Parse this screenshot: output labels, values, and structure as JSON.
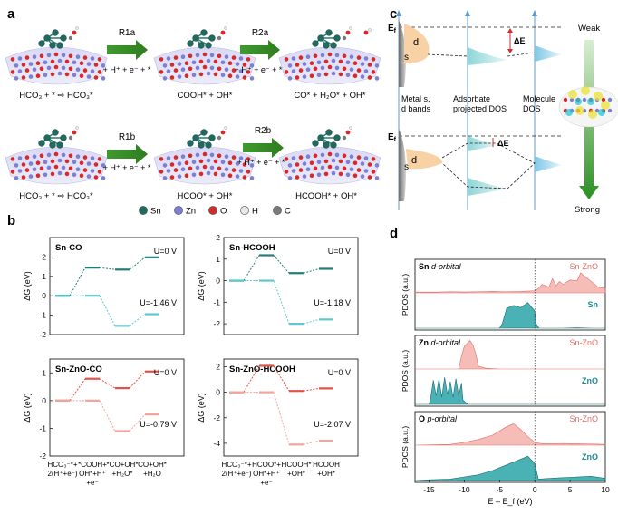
{
  "panels": {
    "a": "a",
    "b": "b",
    "c": "c",
    "d": "d"
  },
  "panel_a": {
    "arrows": [
      "R1a",
      "R2a",
      "R1b",
      "R2b"
    ],
    "arrow_sub": [
      "+ H⁺ + e⁻ + *",
      "+ H⁺ + e⁻ + *",
      "+ H⁺ + e⁻ + *",
      "+ H⁺ + e⁻ + *"
    ],
    "captions_top": [
      "HCO₃ + * ⇨ HCO₃*",
      "COOH* + OH*",
      "CO* + H₂O* + OH*"
    ],
    "captions_bottom": [
      "HCO₃ + * ⇨ HCO₃*",
      "HCOO* + OH*",
      "HCOOH* + OH*"
    ],
    "legend": [
      "Sn",
      "Zn",
      "O",
      "H",
      "C"
    ],
    "legend_colors": [
      "#1f6b60",
      "#7d7fd6",
      "#d42a2a",
      "#e8e8e8",
      "#7a7a7a"
    ]
  },
  "panel_b": {
    "y_label": "ΔG (eV)",
    "x_labels": [
      "HCO₃⁻*+|2(H⁺+e⁻)",
      "*COOH+|OH*+H⁺|+e⁻",
      "*CO+OH*|+H₂O*",
      "CO+OH*|+H₂O"
    ],
    "x_labels_hcooh": [
      "HCO₃⁻*+|2(H⁺+e⁻)",
      "HCOO*+|OH*+H⁺|+e⁻",
      "HCOOH*|+OH*",
      "HCOOH|+OH*"
    ]
  },
  "panel_c": {
    "ef": "E_f",
    "weak": "Weak",
    "strong": "Strong",
    "de": "ΔE",
    "d": "d",
    "s": "s",
    "col_labels": [
      "Metal s,|d bands",
      "Adsorbate|projected DOS",
      "Molecule|DOS"
    ]
  },
  "panel_d": {
    "y_label": "PDOS (a.u.)",
    "x_label": "E – E_f (eV)",
    "x_ticks": [
      "-15",
      "-10",
      "-5",
      "0",
      "5",
      "10"
    ],
    "subplots": [
      {
        "title_bold": "Sn",
        "title_rest": " d-orbital",
        "legend_top": "Sn-ZnO",
        "legend_bottom": "Sn"
      },
      {
        "title_bold": "Zn",
        "title_rest": " d-orbital",
        "legend_top": "Sn-ZnO",
        "legend_bottom": "ZnO"
      },
      {
        "title_bold": "O",
        "title_rest": " p-orbital",
        "legend_top": "Sn-ZnO",
        "legend_bottom": "ZnO"
      }
    ],
    "colors": {
      "top": "#f2a6a0",
      "bottom": "#2aa3a8"
    }
  },
  "chart_data": [
    {
      "type": "line",
      "title": "Sn-CO",
      "ylim": [
        -2,
        3
      ],
      "yticks": [
        -2,
        -1,
        0,
        1,
        2
      ],
      "color": "#1f7f76",
      "color2": "#5cc8d0",
      "series": [
        {
          "name": "U=0 V",
          "values": [
            0,
            1.45,
            1.35,
            1.98
          ]
        },
        {
          "name": "U=-1.46 V",
          "values": [
            0,
            0,
            -1.55,
            -0.95
          ]
        }
      ]
    },
    {
      "type": "line",
      "title": "Sn-HCOOH",
      "ylim": [
        -2.5,
        2
      ],
      "yticks": [
        -2,
        -1,
        0,
        1,
        2
      ],
      "color": "#1f7f76",
      "color2": "#5cc8d0",
      "series": [
        {
          "name": "U=0 V",
          "values": [
            0,
            1.18,
            0.35,
            0.55
          ]
        },
        {
          "name": "U=-1.18 V",
          "values": [
            0,
            0,
            -2.0,
            -1.8
          ]
        }
      ]
    },
    {
      "type": "line",
      "title": "Sn-ZnO-CO",
      "ylim": [
        -2,
        1.5
      ],
      "yticks": [
        -2,
        -1,
        0,
        1
      ],
      "color": "#e0524a",
      "color2": "#f4a39d",
      "series": [
        {
          "name": "U=0 V",
          "values": [
            0,
            0.79,
            0.45,
            1.05
          ]
        },
        {
          "name": "U=-0.79 V",
          "values": [
            0,
            0,
            -1.1,
            -0.5
          ]
        }
      ]
    },
    {
      "type": "line",
      "title": "Sn-ZnO-HCOOH",
      "ylim": [
        -5,
        2.6
      ],
      "yticks": [
        -4,
        -2,
        0,
        2
      ],
      "color": "#e0524a",
      "color2": "#f4a39d",
      "series": [
        {
          "name": "U=0 V",
          "values": [
            0,
            2.07,
            0.1,
            0.3
          ]
        },
        {
          "name": "U=-2.07 V",
          "values": [
            0,
            0,
            -4.1,
            -3.8
          ]
        }
      ]
    },
    {
      "type": "area",
      "title": "Sn d-orbital PDOS",
      "xlim": [
        -17,
        10
      ],
      "series": [
        {
          "name": "Sn-ZnO",
          "x": [
            -17,
            -14,
            -12,
            -10,
            -8,
            -6,
            -4,
            -2,
            0,
            0.5,
            1,
            2,
            2.5,
            3,
            3.5,
            4,
            5,
            6,
            6.5,
            7,
            8,
            9,
            10
          ],
          "values": [
            0.05,
            0.05,
            0.08,
            0.06,
            0.08,
            0.1,
            0.08,
            0.1,
            0.15,
            0.3,
            0.6,
            0.4,
            1.0,
            0.5,
            0.8,
            0.6,
            0.9,
            0.85,
            1.4,
            1.2,
            0.8,
            0.4,
            0.3
          ]
        },
        {
          "name": "Sn",
          "x": [
            -17,
            -5,
            -4.6,
            -4,
            -3,
            -2,
            -1,
            0,
            0.2,
            0.6,
            2,
            4,
            6,
            8,
            10
          ],
          "values": [
            0,
            0,
            0.35,
            1.4,
            1.6,
            1.45,
            1.8,
            1.2,
            0.3,
            0,
            0,
            0,
            0.03,
            0,
            0
          ]
        }
      ]
    },
    {
      "type": "area",
      "title": "Zn d-orbital PDOS",
      "xlim": [
        -17,
        10
      ],
      "series": [
        {
          "name": "Sn-ZnO",
          "x": [
            -17,
            -12,
            -10.8,
            -10.4,
            -10,
            -9.6,
            -9.2,
            -8.8,
            -8.4,
            -8,
            -7,
            -5,
            0,
            10
          ],
          "values": [
            0,
            0,
            0,
            0.9,
            1.6,
            1.8,
            2.0,
            1.7,
            1.1,
            0.2,
            0.05,
            0,
            0,
            0
          ]
        },
        {
          "name": "ZnO",
          "x": [
            -17,
            -15,
            -14.8,
            -14.4,
            -14,
            -13.6,
            -13.2,
            -12.8,
            -12.4,
            -12,
            -11.6,
            -11.2,
            -10.8,
            -10.4,
            -10.2,
            -9.5,
            0,
            10
          ],
          "values": [
            0,
            0,
            0.4,
            1.7,
            0.6,
            1.8,
            0.5,
            1.9,
            0.7,
            1.6,
            0.5,
            1.8,
            0.6,
            1.5,
            0.3,
            0,
            0,
            0
          ]
        }
      ]
    },
    {
      "type": "area",
      "title": "O p-orbital PDOS",
      "xlim": [
        -17,
        10
      ],
      "series": [
        {
          "name": "Sn-ZnO",
          "x": [
            -17,
            -12,
            -10,
            -8,
            -6,
            -4,
            -3,
            -2,
            -1,
            0,
            1,
            2,
            4,
            6,
            8,
            10
          ],
          "values": [
            0,
            0.05,
            0.2,
            0.4,
            0.7,
            1.3,
            1.5,
            1.1,
            0.6,
            0.2,
            0.1,
            0.1,
            0.12,
            0.1,
            0.08,
            0.05
          ]
        },
        {
          "name": "ZnO",
          "x": [
            -17,
            -15,
            -12,
            -10,
            -8,
            -6,
            -4,
            -2,
            -1,
            0,
            0.5,
            2,
            4,
            6,
            8,
            10
          ],
          "values": [
            0,
            0.05,
            0.1,
            0.25,
            0.4,
            0.7,
            1.1,
            1.5,
            1.7,
            1.2,
            0.1,
            0.15,
            0.2,
            0.25,
            0.3,
            0.15
          ]
        }
      ]
    }
  ]
}
